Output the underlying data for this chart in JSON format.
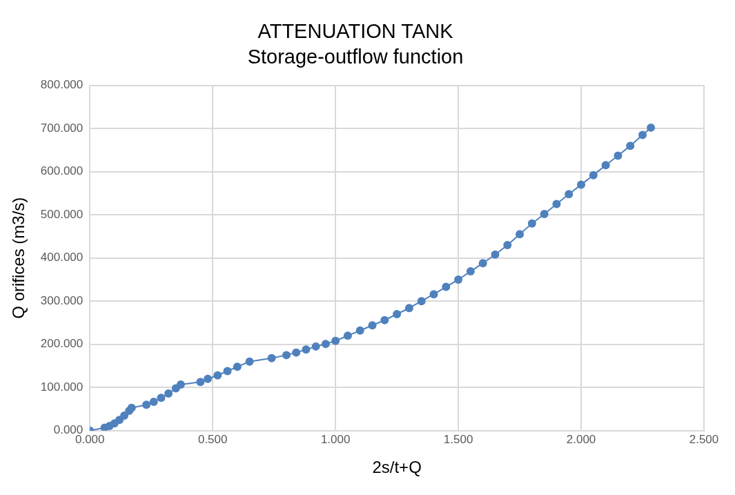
{
  "chart_data": {
    "type": "line",
    "title": "ATTENUATION TANK",
    "subtitle": "Storage-outflow function",
    "xlabel": "2s/t+Q",
    "ylabel": "Q orifices (m3/s)",
    "xlim": [
      0,
      2.5
    ],
    "ylim": [
      0,
      800
    ],
    "xticks": [
      {
        "value": 0,
        "label": "0.000"
      },
      {
        "value": 0.5,
        "label": "0.500"
      },
      {
        "value": 1,
        "label": "1.000"
      },
      {
        "value": 1.5,
        "label": "1.500"
      },
      {
        "value": 2,
        "label": "2.000"
      },
      {
        "value": 2.5,
        "label": "2.500"
      }
    ],
    "yticks": [
      {
        "value": 0,
        "label": "0.000"
      },
      {
        "value": 100,
        "label": "100.000"
      },
      {
        "value": 200,
        "label": "200.000"
      },
      {
        "value": 300,
        "label": "300.000"
      },
      {
        "value": 400,
        "label": "400.000"
      },
      {
        "value": 500,
        "label": "500.000"
      },
      {
        "value": 600,
        "label": "600.000"
      },
      {
        "value": 700,
        "label": "700.000"
      },
      {
        "value": 800,
        "label": "800.000"
      }
    ],
    "grid": true,
    "legend": false,
    "marker": "circle",
    "line_style": "solid",
    "series": [
      {
        "color": "#4f81bd",
        "x": [
          0,
          0.06,
          0.08,
          0.1,
          0.12,
          0.14,
          0.16,
          0.17,
          0.23,
          0.26,
          0.29,
          0.32,
          0.35,
          0.37,
          0.45,
          0.48,
          0.52,
          0.56,
          0.6,
          0.65,
          0.74,
          0.8,
          0.84,
          0.88,
          0.92,
          0.96,
          1.0,
          1.05,
          1.1,
          1.15,
          1.2,
          1.25,
          1.3,
          1.35,
          1.4,
          1.45,
          1.5,
          1.55,
          1.6,
          1.65,
          1.7,
          1.75,
          1.8,
          1.85,
          1.9,
          1.95,
          2.0,
          2.05,
          2.1,
          2.15,
          2.2,
          2.25,
          2.284
        ],
        "values": [
          0,
          7,
          11,
          17,
          25,
          35,
          46,
          53,
          60,
          67,
          76,
          86,
          98,
          107,
          113,
          120,
          128,
          138,
          148,
          160,
          168,
          175,
          181,
          188,
          195,
          201,
          208,
          220,
          232,
          244,
          256,
          270,
          284,
          300,
          316,
          333,
          350,
          369,
          388,
          408,
          430,
          455,
          480,
          502,
          525,
          548,
          570,
          592,
          615,
          637,
          660,
          685,
          702
        ]
      }
    ]
  }
}
